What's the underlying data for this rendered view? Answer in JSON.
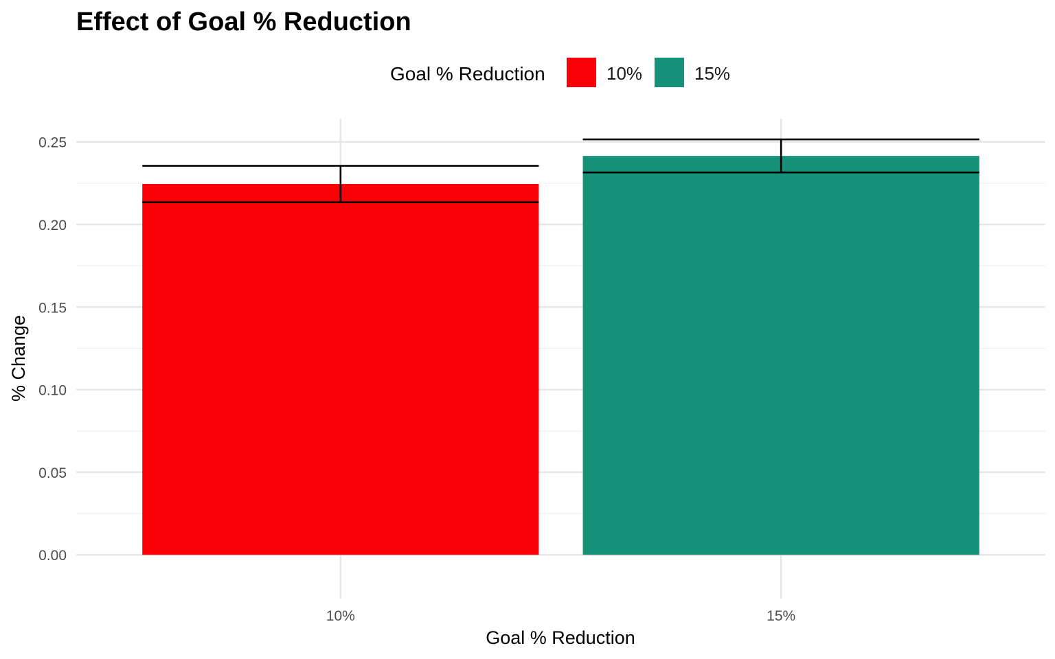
{
  "chart_data": {
    "type": "bar",
    "title": "Effect of Goal % Reduction",
    "xlabel": "Goal % Reduction",
    "ylabel": "% Change",
    "categories": [
      "10%",
      "15%"
    ],
    "values": [
      0.2245,
      0.2415
    ],
    "error_bars": [
      {
        "lower": 0.2135,
        "upper": 0.2355
      },
      {
        "lower": 0.2315,
        "upper": 0.2515
      }
    ],
    "colors": [
      "#fa0007",
      "#159279"
    ],
    "ylim": [
      -0.0265,
      0.264
    ],
    "yticks": [
      0.0,
      0.05,
      0.1,
      0.15,
      0.2,
      0.25
    ],
    "ytick_labels": [
      "0.00",
      "0.05",
      "0.10",
      "0.15",
      "0.20",
      "0.25"
    ],
    "grid": true,
    "legend": {
      "title": "Goal % Reduction",
      "position": "top",
      "entries": [
        {
          "label": "10%",
          "color": "#fa0007"
        },
        {
          "label": "15%",
          "color": "#159279"
        }
      ]
    }
  }
}
